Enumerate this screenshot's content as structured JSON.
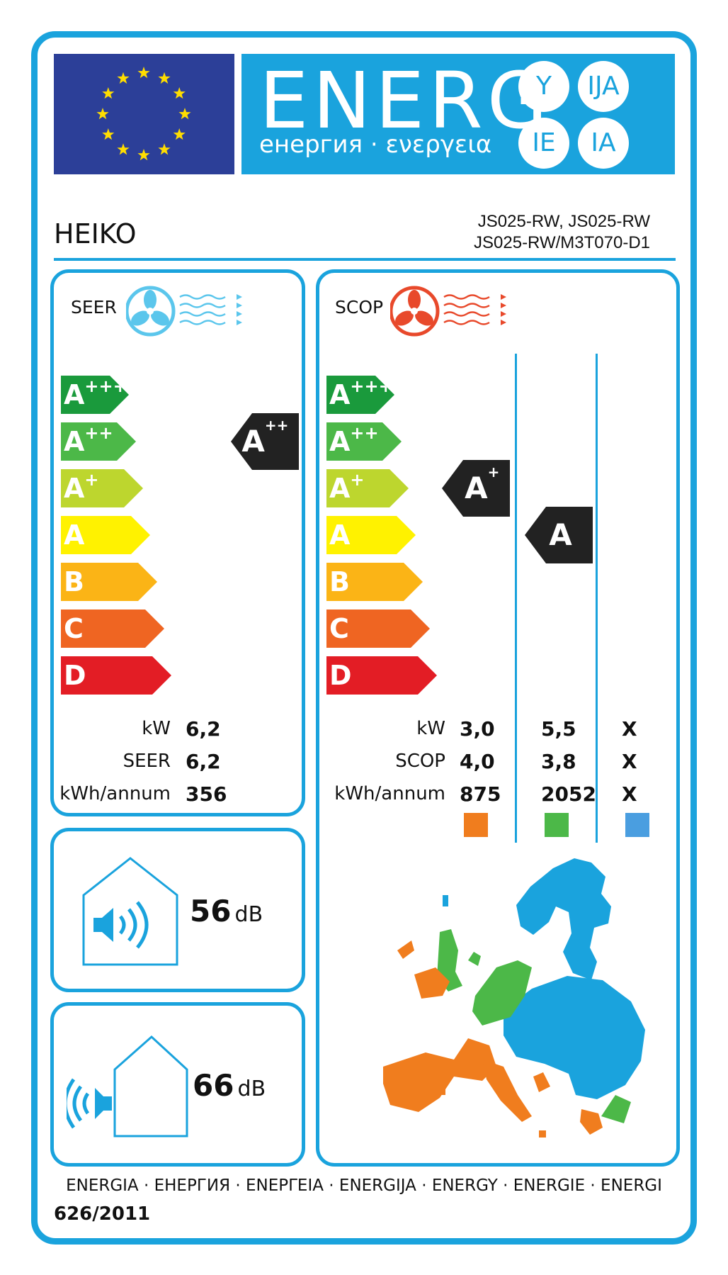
{
  "header": {
    "energ": "ENERG",
    "subtitle": "енергия · ενεργεια",
    "suffixes": [
      "Y",
      "IJA",
      "IE",
      "IA"
    ]
  },
  "product": {
    "brand": "HEIKO",
    "model_line1": "JS025-RW, JS025-RW",
    "model_line2": "JS025-RW/M3T070-D1"
  },
  "classes": [
    "A+++",
    "A++",
    "A+",
    "A",
    "B",
    "C",
    "D"
  ],
  "class_colors": [
    "#1a9a3c",
    "#4cb848",
    "#bdd62e",
    "#fff200",
    "#fbb416",
    "#ef6522",
    "#e31d25"
  ],
  "cooling": {
    "title": "SEER",
    "rating_base": "A",
    "rating_sup": "++",
    "labels": {
      "kw": "kW",
      "seer": "SEER",
      "annual": "kWh/annum"
    },
    "values": {
      "kw": "6,2",
      "seer": "6,2",
      "annual": "356"
    }
  },
  "heating": {
    "title": "SCOP",
    "zones": [
      {
        "rating_base": "A",
        "rating_sup": "+",
        "kw": "3,0",
        "scop": "4,0",
        "annual": "875",
        "color": "#f07d1e"
      },
      {
        "rating_base": "A",
        "rating_sup": "",
        "kw": "5,5",
        "scop": "3,8",
        "annual": "2052",
        "color": "#4cb848"
      },
      {
        "rating_base": "",
        "rating_sup": "",
        "kw": "X",
        "scop": "X",
        "annual": "X",
        "color": "#4a9ee0"
      }
    ],
    "labels": {
      "kw": "kW",
      "scop": "SCOP",
      "annual": "kWh/annum"
    }
  },
  "noise": {
    "indoor_value": "56",
    "outdoor_value": "66",
    "unit": "dB"
  },
  "footer": {
    "languages": "ENERGIA · ЕНЕРГИЯ · ΕΝΕΡΓΕΙΑ · ENERGIJA · ENERGY · ENERGIE · ENERGI",
    "regulation": "626/2011"
  },
  "colors": {
    "accent": "#1aa3dd",
    "eu_blue": "#2c3f98",
    "star": "#ffdd00",
    "marker": "#222222"
  }
}
